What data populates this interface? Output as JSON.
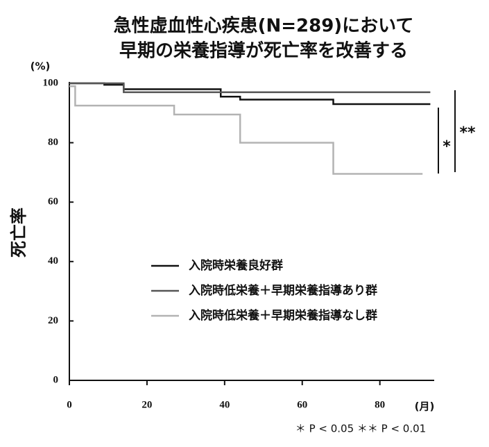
{
  "chart_data": {
    "type": "line",
    "title": [
      "急性虚血性心疾患(N=289)において",
      "早期の栄養指導が死亡率を改善する"
    ],
    "y_label": "死亡率",
    "y_unit": "(%)",
    "x_unit": "(月)",
    "xlim": [
      0,
      94
    ],
    "ylim": [
      0,
      100
    ],
    "xticks": [
      0,
      20,
      40,
      60,
      80
    ],
    "yticks": [
      0,
      20,
      40,
      60,
      80,
      100
    ],
    "series": [
      {
        "name": "入院時栄養良好群",
        "color": "#111111",
        "x": [
          0,
          9,
          9,
          14,
          14,
          39,
          39,
          44,
          44,
          68,
          68,
          93
        ],
        "values": [
          100,
          100,
          99.5,
          99.5,
          98,
          98,
          95.5,
          95.5,
          94.5,
          94.5,
          93,
          93
        ]
      },
      {
        "name": "入院時低栄養＋早期栄養指導あり群",
        "color": "#555555",
        "x": [
          0,
          14,
          14,
          93
        ],
        "values": [
          100,
          100,
          97,
          97
        ]
      },
      {
        "name": "入院時低栄養＋早期栄養指導なし群",
        "color": "#b3b3b3",
        "x": [
          0,
          1.5,
          1.5,
          27,
          27,
          44,
          44,
          68,
          68,
          91
        ],
        "values": [
          99,
          99,
          92.5,
          92.5,
          89.5,
          89.5,
          80,
          80,
          69.5,
          69.5
        ]
      }
    ],
    "annotations": [
      "*",
      "**",
      "＊ P < 0.05  ＊＊ P < 0.01"
    ]
  }
}
